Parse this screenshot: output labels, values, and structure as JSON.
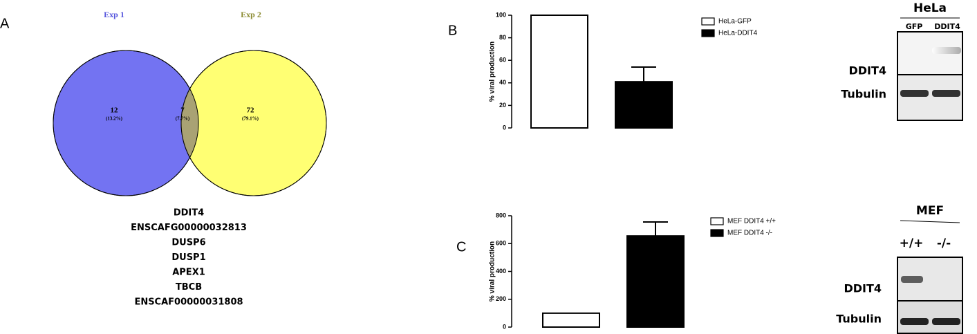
{
  "chart_data": [
    {
      "type": "venn",
      "panel": "A",
      "sets": [
        {
          "name": "Exp 1",
          "color": "#7373f2"
        },
        {
          "name": "Exp 2",
          "color": "#ffff73"
        }
      ],
      "overlap_color": "#a9a274",
      "values": [
        12,
        7,
        72
      ],
      "percent_labels": [
        "(13.2%)",
        "(7.7%)",
        "(79.1%)"
      ],
      "genes": [
        "DDIT4",
        "ENSCAFG00000032813",
        "DUSP6",
        "DUSP1",
        "APEX1",
        "TBCB",
        "ENSCAF00000031808"
      ]
    },
    {
      "type": "bar",
      "panel": "B",
      "ylabel": "% viral production",
      "categories": [
        null,
        null
      ],
      "series": [
        {
          "name": "HeLa-GFP",
          "color": "#ffffff",
          "values": [
            100,
            null
          ],
          "errors": [
            null,
            null
          ]
        },
        {
          "name": "HeLa-DDIT4",
          "color": "#000000",
          "values": [
            null,
            41
          ],
          "errors": [
            null,
            13
          ]
        }
      ],
      "ylim": [
        0,
        100
      ],
      "yticks": [
        0,
        20,
        40,
        60,
        80,
        100
      ],
      "legend": "right"
    },
    {
      "type": "bar",
      "panel": "C",
      "ylabel": "% viral production",
      "categories": [
        null,
        null
      ],
      "series": [
        {
          "name": "MEF DDIT4 +/+",
          "color": "#ffffff",
          "values": [
            100,
            null
          ],
          "errors": [
            null,
            null
          ]
        },
        {
          "name": "MEF DDIT4 -/-",
          "color": "#000000",
          "values": [
            null,
            655
          ],
          "errors": [
            null,
            100
          ]
        }
      ],
      "ylim": [
        0,
        800
      ],
      "yticks": [
        0,
        200,
        400,
        600,
        800
      ],
      "legend": "right"
    }
  ],
  "blots": [
    {
      "title": "HeLa",
      "lanes": [
        "GFP",
        "DDIT4"
      ],
      "rows": [
        "DDIT4",
        "Tubulin"
      ]
    },
    {
      "title": "MEF",
      "lanes": [
        "+/+",
        "-/-"
      ],
      "rows": [
        "DDIT4",
        "Tubulin"
      ]
    }
  ]
}
